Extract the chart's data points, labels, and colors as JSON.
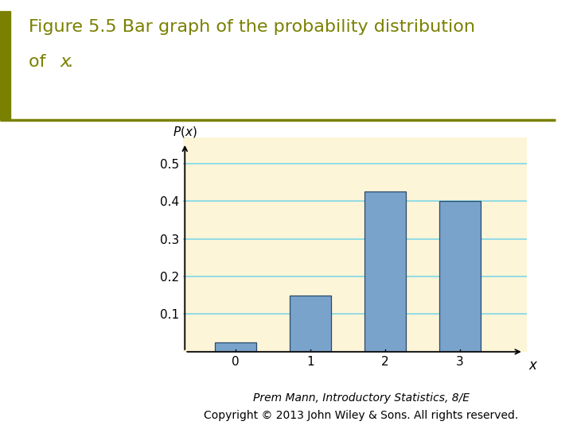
{
  "title_line1": "Figure 5.5 Bar graph of the probability distribution",
  "title_line2": "of ",
  "title_italic_part": "x",
  "title_line2_after": ".",
  "title_color": "#7a8000",
  "title_fontsize": 16,
  "page_bg": "#ffffff",
  "chart_bg": "#fdf5d8",
  "grid_color": "#7fd8e8",
  "x_values": [
    0,
    1,
    2,
    3
  ],
  "probabilities": [
    0.025,
    0.15,
    0.425,
    0.4
  ],
  "bar_color": "#7aa3cc",
  "bar_edgecolor": "#2a4a6a",
  "ylim": [
    0,
    0.57
  ],
  "yticks": [
    0.1,
    0.2,
    0.3,
    0.4,
    0.5
  ],
  "xlabel": "x",
  "footer_text1": "Prem Mann, Introductory Statistics, 8/E",
  "footer_text2": "Copyright © 2013 John Wiley & Sons. All rights reserved.",
  "footer_fontsize": 10,
  "accent_color": "#7a8000"
}
